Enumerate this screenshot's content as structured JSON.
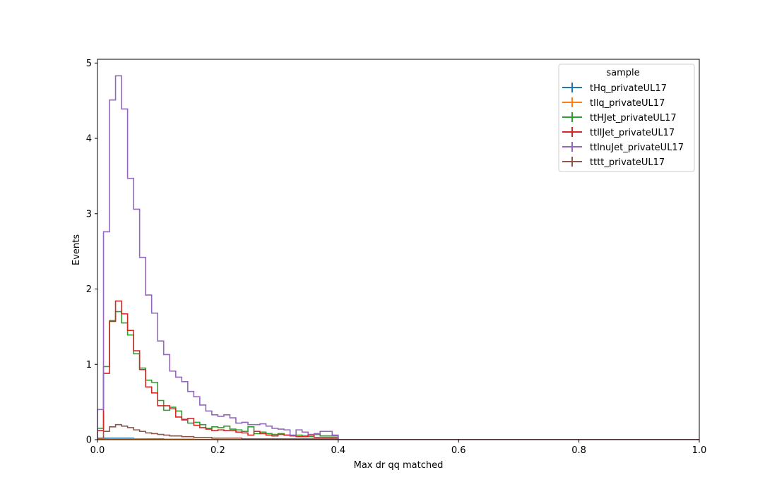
{
  "chart_data": {
    "type": "histogram-step",
    "title": "",
    "xlabel": "Max dr qq matched",
    "ylabel": "Events",
    "xlim": [
      0,
      1.0
    ],
    "ylim": [
      0,
      5.05
    ],
    "xticks": [
      0,
      0.2,
      0.4,
      0.6,
      0.8,
      1.0
    ],
    "xtick_labels": [
      "0.0",
      "0.2",
      "0.4",
      "0.6",
      "0.8",
      "1.0"
    ],
    "yticks": [
      0,
      1,
      2,
      3,
      4,
      5
    ],
    "ytick_labels": [
      "0",
      "1",
      "2",
      "3",
      "4",
      "5"
    ],
    "grid": false,
    "bin_width": 0.01,
    "legend": {
      "title": "sample",
      "placement": "top-right"
    },
    "series": [
      {
        "name": "tHq_privateUL17",
        "color": "#1f77b4",
        "values": [
          0.01,
          0.02,
          0.02,
          0.02,
          0.02,
          0.02,
          0.01,
          0.01,
          0.01,
          0.01,
          0.01,
          0.005,
          0.005,
          0.005,
          0.005,
          0.005,
          0.003,
          0.003,
          0.003,
          0.003,
          0.002,
          0.002,
          0.002,
          0.002,
          0.002,
          0.001,
          0.001,
          0.001,
          0.001,
          0.001,
          0.001,
          0.001,
          0.001,
          0.001,
          0.001,
          0.001,
          0.001,
          0.001,
          0.001,
          0.001
        ]
      },
      {
        "name": "tllq_privateUL17",
        "color": "#ff7f0e",
        "values": [
          0.005,
          0.008,
          0.01,
          0.01,
          0.01,
          0.01,
          0.008,
          0.006,
          0.005,
          0.004,
          0.003,
          0.003,
          0.002,
          0.002,
          0.002,
          0.002,
          0.001,
          0.001,
          0.001,
          0.001,
          0.001,
          0.001,
          0.001,
          0.001,
          0.001,
          0.001,
          0.001,
          0.001,
          0.001,
          0.001,
          0.001,
          0.001,
          0.001,
          0.001,
          0.001,
          0.001,
          0.001,
          0.001,
          0.001,
          0.001
        ]
      },
      {
        "name": "ttHJet_privateUL17",
        "color": "#2ca02c",
        "values": [
          0.15,
          0.97,
          1.58,
          1.7,
          1.55,
          1.39,
          1.14,
          0.95,
          0.79,
          0.76,
          0.52,
          0.39,
          0.43,
          0.38,
          0.26,
          0.22,
          0.23,
          0.2,
          0.15,
          0.17,
          0.16,
          0.18,
          0.14,
          0.13,
          0.11,
          0.17,
          0.08,
          0.1,
          0.08,
          0.07,
          0.08,
          0.06,
          0.05,
          0.06,
          0.05,
          0.04,
          0.07,
          0.05,
          0.05,
          0.05
        ]
      },
      {
        "name": "ttllJet_privateUL17",
        "color": "#d62728",
        "values": [
          0.12,
          0.88,
          1.57,
          1.84,
          1.67,
          1.45,
          1.18,
          0.93,
          0.7,
          0.62,
          0.45,
          0.45,
          0.41,
          0.3,
          0.27,
          0.28,
          0.19,
          0.16,
          0.14,
          0.12,
          0.13,
          0.12,
          0.12,
          0.1,
          0.09,
          0.06,
          0.11,
          0.08,
          0.06,
          0.05,
          0.07,
          0.06,
          0.05,
          0.04,
          0.04,
          0.06,
          0.03,
          0.03,
          0.03,
          0.03
        ]
      },
      {
        "name": "ttlnuJet_privateUL17",
        "color": "#9467bd",
        "values": [
          0.4,
          2.76,
          4.51,
          4.83,
          4.39,
          3.47,
          3.06,
          2.42,
          1.92,
          1.68,
          1.31,
          1.13,
          0.91,
          0.83,
          0.77,
          0.64,
          0.57,
          0.46,
          0.38,
          0.33,
          0.31,
          0.33,
          0.29,
          0.22,
          0.23,
          0.2,
          0.2,
          0.21,
          0.18,
          0.15,
          0.14,
          0.13,
          0.06,
          0.13,
          0.1,
          0.07,
          0.08,
          0.11,
          0.11,
          0.06
        ]
      },
      {
        "name": "tttt_privateUL17",
        "color": "#8c564b",
        "values": [
          0.02,
          0.11,
          0.17,
          0.2,
          0.18,
          0.16,
          0.13,
          0.11,
          0.09,
          0.08,
          0.07,
          0.06,
          0.05,
          0.05,
          0.04,
          0.04,
          0.03,
          0.03,
          0.03,
          0.02,
          0.02,
          0.02,
          0.02,
          0.02,
          0.01,
          0.01,
          0.01,
          0.01,
          0.01,
          0.01,
          0.01,
          0.01,
          0.01,
          0.01,
          0.01,
          0.01,
          0.01,
          0.01,
          0.01,
          0.01
        ]
      }
    ]
  }
}
